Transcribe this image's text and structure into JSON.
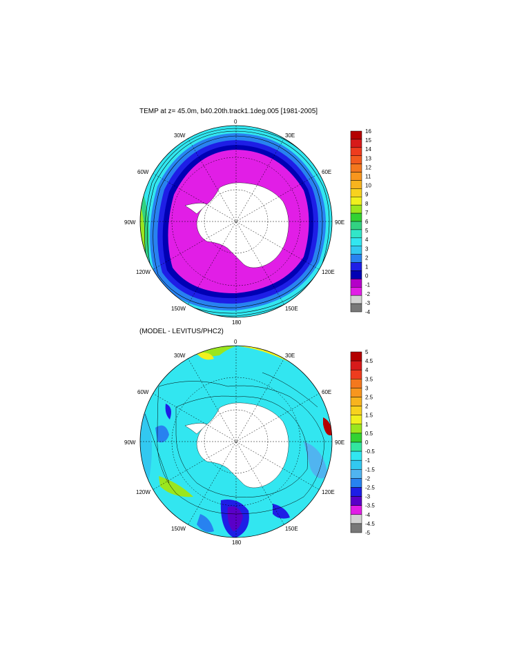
{
  "panels": [
    {
      "id": "temp",
      "title": "TEMP at z=  45.0m, b40.20th.track1.1deg.005 [1981-2005]",
      "lon_labels": [
        "0",
        "30E",
        "60E",
        "90E",
        "120E",
        "150E",
        "180",
        "150W",
        "120W",
        "90W",
        "60W",
        "30W"
      ],
      "colorbar": {
        "labels": [
          "16",
          "15",
          "14",
          "13",
          "12",
          "11",
          "10",
          "9",
          "8",
          "7",
          "6",
          "5",
          "4",
          "3",
          "2",
          "1",
          "0",
          "-1",
          "-2",
          "-3",
          "-4"
        ],
        "colors": [
          "#b40000",
          "#d71a1a",
          "#ee3c1e",
          "#f25a1e",
          "#f4781e",
          "#f8961e",
          "#f8b41e",
          "#f8d21e",
          "#f0f01e",
          "#9ae61e",
          "#32d232",
          "#32d282",
          "#32e6c8",
          "#32e6f0",
          "#32c8f0",
          "#2882f0",
          "#1e1ee6",
          "#0000b4",
          "#b400c8",
          "#e11ee6",
          "#d2d2d2",
          "#787878"
        ]
      },
      "regions": [
        "magenta-polar",
        "blue-front",
        "cyan-band",
        "green-pacific",
        "antarctica-land"
      ]
    },
    {
      "id": "diff",
      "title": "(MODEL - LEVITUS/PHC2)",
      "lon_labels": [
        "0",
        "30E",
        "60E",
        "90E",
        "120E",
        "150E",
        "180",
        "150W",
        "120W",
        "90W",
        "60W",
        "30W"
      ],
      "colorbar": {
        "labels": [
          "5",
          "4.5",
          "4",
          "3.5",
          "3",
          "2.5",
          "2",
          "1.5",
          "1",
          "0.5",
          "0",
          "-0.5",
          "-1",
          "-1.5",
          "-2",
          "-2.5",
          "-3",
          "-3.5",
          "-4",
          "-4.5",
          "-5"
        ],
        "colors": [
          "#b40000",
          "#d71a1a",
          "#ee3c1e",
          "#f4781e",
          "#f8961e",
          "#f8b41e",
          "#f8d21e",
          "#f0f01e",
          "#9ae61e",
          "#32d232",
          "#32e6a0",
          "#32e6f0",
          "#32c8f0",
          "#50b4f0",
          "#2882f0",
          "#1e1ee6",
          "#5a00c8",
          "#e11ee6",
          "#d2d2d2",
          "#787878"
        ]
      }
    }
  ]
}
